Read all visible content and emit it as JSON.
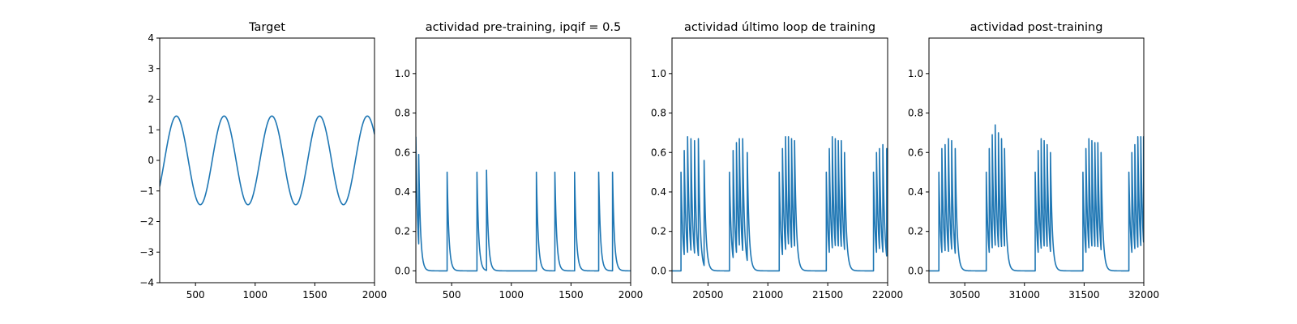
{
  "figure": {
    "background": "#ffffff",
    "line_color": "#1f77b4"
  },
  "chart_data": [
    {
      "type": "line",
      "title": "Target",
      "xlabel": "",
      "ylabel": "",
      "xlim": [
        200,
        2000
      ],
      "ylim": [
        -4,
        4
      ],
      "xticks": [
        500,
        1000,
        1500,
        2000
      ],
      "xtick_labels": [
        "500",
        "1000",
        "1500",
        "2000"
      ],
      "yticks": [
        -4,
        -3,
        -2,
        -1,
        0,
        1,
        2,
        3,
        4
      ],
      "ytick_labels": [
        "−4",
        "−3",
        "−2",
        "−1",
        "0",
        "1",
        "2",
        "3",
        "4"
      ],
      "grid": false,
      "series": [
        {
          "kind": "sine",
          "amplitude": 1.45,
          "period": 400,
          "peak_x": 340,
          "x_start": 200,
          "x_end": 2000
        }
      ]
    },
    {
      "type": "line",
      "title": "actividad pre-training, ipqif = 0.5",
      "xlabel": "",
      "ylabel": "",
      "xlim": [
        200,
        2000
      ],
      "ylim": [
        -0.06,
        1.18
      ],
      "xticks": [
        500,
        1000,
        1500,
        2000
      ],
      "xtick_labels": [
        "500",
        "1000",
        "1500",
        "2000"
      ],
      "yticks": [
        0.0,
        0.2,
        0.4,
        0.6,
        0.8,
        1.0
      ],
      "ytick_labels": [
        "0.0",
        "0.2",
        "0.4",
        "0.6",
        "0.8",
        "1.0"
      ],
      "grid": false,
      "series": [
        {
          "kind": "spikes",
          "x_start": 200,
          "x_end": 2000,
          "initial": 0.68,
          "tau": 15,
          "spikes": [
            [
              224,
              0.59
            ],
            [
              462,
              0.5
            ],
            [
              712,
              0.5
            ],
            [
              792,
              0.51
            ],
            [
              1210,
              0.5
            ],
            [
              1365,
              0.5
            ],
            [
              1530,
              0.5
            ],
            [
              1732,
              0.5
            ],
            [
              1848,
              0.5
            ]
          ]
        }
      ]
    },
    {
      "type": "line",
      "title": "actividad último loop de training",
      "xlabel": "",
      "ylabel": "",
      "xlim": [
        20200,
        22000
      ],
      "ylim": [
        -0.06,
        1.18
      ],
      "xticks": [
        20500,
        21000,
        21500,
        22000
      ],
      "xtick_labels": [
        "20500",
        "21000",
        "21500",
        "22000"
      ],
      "yticks": [
        0.0,
        0.2,
        0.4,
        0.6,
        0.8,
        1.0
      ],
      "ytick_labels": [
        "0.0",
        "0.2",
        "0.4",
        "0.6",
        "0.8",
        "1.0"
      ],
      "grid": false,
      "series": [
        {
          "kind": "spikes",
          "x_start": 20200,
          "x_end": 22000,
          "initial": 0.0,
          "tau": 15,
          "spikes": [
            [
              20275,
              0.5
            ],
            [
              20302,
              0.61
            ],
            [
              20330,
              0.68
            ],
            [
              20358,
              0.67
            ],
            [
              20388,
              0.66
            ],
            [
              20420,
              0.67
            ],
            [
              20468,
              0.56
            ],
            [
              20680,
              0.5
            ],
            [
              20710,
              0.61
            ],
            [
              20738,
              0.65
            ],
            [
              20762,
              0.67
            ],
            [
              20790,
              0.67
            ],
            [
              20828,
              0.6
            ],
            [
              21095,
              0.5
            ],
            [
              21122,
              0.62
            ],
            [
              21148,
              0.68
            ],
            [
              21172,
              0.68
            ],
            [
              21198,
              0.67
            ],
            [
              21223,
              0.66
            ],
            [
              21488,
              0.5
            ],
            [
              21513,
              0.62
            ],
            [
              21538,
              0.68
            ],
            [
              21563,
              0.67
            ],
            [
              21588,
              0.66
            ],
            [
              21613,
              0.66
            ],
            [
              21640,
              0.6
            ],
            [
              21882,
              0.5
            ],
            [
              21907,
              0.6
            ],
            [
              21932,
              0.62
            ],
            [
              21960,
              0.64
            ],
            [
              21992,
              0.62
            ]
          ]
        }
      ]
    },
    {
      "type": "line",
      "title": "actividad post-training",
      "xlabel": "",
      "ylabel": "",
      "xlim": [
        30200,
        32000
      ],
      "ylim": [
        -0.06,
        1.18
      ],
      "xticks": [
        30500,
        31000,
        31500,
        32000
      ],
      "xtick_labels": [
        "30500",
        "31000",
        "31500",
        "32000"
      ],
      "yticks": [
        0.0,
        0.2,
        0.4,
        0.6,
        0.8,
        1.0
      ],
      "ytick_labels": [
        "0.0",
        "0.2",
        "0.4",
        "0.6",
        "0.8",
        "1.0"
      ],
      "grid": false,
      "series": [
        {
          "kind": "spikes",
          "x_start": 30200,
          "x_end": 32000,
          "initial": 0.0,
          "tau": 15,
          "spikes": [
            [
              30283,
              0.5
            ],
            [
              30308,
              0.62
            ],
            [
              30335,
              0.64
            ],
            [
              30363,
              0.67
            ],
            [
              30390,
              0.66
            ],
            [
              30420,
              0.62
            ],
            [
              30680,
              0.5
            ],
            [
              30705,
              0.62
            ],
            [
              30730,
              0.69
            ],
            [
              30755,
              0.74
            ],
            [
              30782,
              0.7
            ],
            [
              30808,
              0.67
            ],
            [
              30833,
              0.62
            ],
            [
              31090,
              0.5
            ],
            [
              31115,
              0.61
            ],
            [
              31140,
              0.67
            ],
            [
              31165,
              0.66
            ],
            [
              31190,
              0.64
            ],
            [
              31218,
              0.6
            ],
            [
              31490,
              0.5
            ],
            [
              31515,
              0.62
            ],
            [
              31540,
              0.67
            ],
            [
              31565,
              0.66
            ],
            [
              31590,
              0.65
            ],
            [
              31615,
              0.65
            ],
            [
              31642,
              0.6
            ],
            [
              31875,
              0.5
            ],
            [
              31900,
              0.6
            ],
            [
              31925,
              0.64
            ],
            [
              31950,
              0.68
            ],
            [
              31975,
              0.68
            ],
            [
              31998,
              0.68
            ]
          ]
        }
      ]
    }
  ]
}
